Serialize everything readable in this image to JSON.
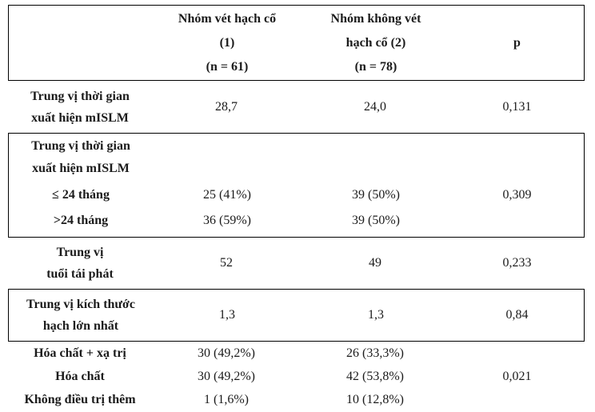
{
  "colors": {
    "border": "#000000",
    "text": "#1b1b1b",
    "background": "#ffffff"
  },
  "table": {
    "header": {
      "group1": {
        "line1": "Nhóm vét hạch cổ",
        "line2": "(1)",
        "line3": "(n = 61)"
      },
      "group2": {
        "line1": "Nhóm không vét",
        "line2": "hạch cổ (2)",
        "line3": "(n = 78)"
      },
      "p_label": "p"
    },
    "row_mislm_time": {
      "label_line1": "Trung vị thời gian",
      "label_line2": "xuất hiện mISLM",
      "g1": "28,7",
      "g2": "24,0",
      "p": "0,131"
    },
    "section_mislm_split": {
      "title_line1": "Trung vị thời gian",
      "title_line2": "xuất hiện mISLM",
      "rows": [
        {
          "label": "≤ 24 tháng",
          "g1": "25 (41%)",
          "g2": "39 (50%)",
          "p": "0,309"
        },
        {
          "label": ">24 tháng",
          "g1": "36 (59%)",
          "g2": "39 (50%)",
          "p": ""
        }
      ]
    },
    "row_age": {
      "label_line1": "Trung vị",
      "label_line2": "tuổi tái phát",
      "g1": "52",
      "g2": "49",
      "p": "0,233"
    },
    "row_size": {
      "label_line1": "Trung vị kích thước",
      "label_line2": "hạch lớn nhất",
      "g1": "1,3",
      "g2": "1,3",
      "p": "0,84"
    },
    "section_treatment": {
      "rows": [
        {
          "label": "Hóa chất + xạ trị",
          "g1": "30 (49,2%)",
          "g2": "26 (33,3%)",
          "p": ""
        },
        {
          "label": "Hóa chất",
          "g1": "30 (49,2%)",
          "g2": "42 (53,8%)",
          "p": "0,021"
        },
        {
          "label": "Không điều trị thêm",
          "g1": "1 (1,6%)",
          "g2": "10 (12,8%)",
          "p": ""
        }
      ]
    }
  }
}
